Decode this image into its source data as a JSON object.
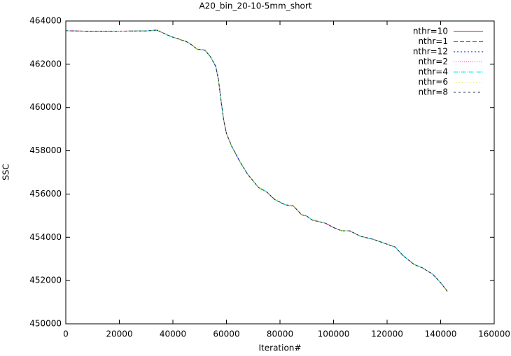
{
  "chart_data": {
    "type": "line",
    "title": "A20_bin_20-10-5mm_short",
    "x_label": "Iteration#",
    "y_label": "SSC",
    "xlim": [
      0,
      160000
    ],
    "xticks": [
      0,
      20000,
      40000,
      60000,
      80000,
      100000,
      120000,
      140000,
      160000
    ],
    "ylim": [
      450000,
      464000
    ],
    "yticks": [
      450000,
      452000,
      454000,
      456000,
      458000,
      460000,
      462000,
      464000
    ],
    "legend": "top-right",
    "x": [
      0,
      10000,
      20000,
      30000,
      34000,
      38000,
      40000,
      45000,
      47000,
      49000,
      52000,
      54000,
      56000,
      57000,
      58000,
      59000,
      60000,
      62000,
      65000,
      68000,
      72000,
      75000,
      78000,
      82000,
      85000,
      88000,
      90000,
      92000,
      97000,
      100000,
      103000,
      106000,
      110000,
      115000,
      120000,
      123000,
      126000,
      130000,
      133000,
      137000,
      140000,
      142500
    ],
    "series": [
      {
        "name": "nthr=10",
        "color": "#ff0000",
        "values": [
          463550,
          463520,
          463530,
          463540,
          463580,
          463350,
          463250,
          463050,
          462900,
          462700,
          462650,
          462350,
          461900,
          461300,
          460300,
          459400,
          458800,
          458200,
          457500,
          456900,
          456300,
          456100,
          455750,
          455500,
          455450,
          455050,
          454980,
          454800,
          454650,
          454450,
          454300,
          454300,
          454050,
          453900,
          453680,
          453550,
          453150,
          452750,
          452600,
          452300,
          451900,
          451500
        ]
      },
      {
        "name": "nthr=1",
        "color": "#00c000",
        "values": [
          463550,
          463520,
          463530,
          463540,
          463580,
          463350,
          463250,
          463050,
          462900,
          462700,
          462650,
          462350,
          461900,
          461300,
          460300,
          459400,
          458800,
          458200,
          457500,
          456900,
          456300,
          456100,
          455750,
          455500,
          455450,
          455050,
          454980,
          454800,
          454650,
          454450,
          454300,
          454300,
          454050,
          453900,
          453680,
          453550,
          453150,
          452750,
          452600,
          452300,
          451900,
          451500
        ]
      },
      {
        "name": "nthr=12",
        "color": "#0000ff",
        "values": [
          463550,
          463520,
          463530,
          463540,
          463580,
          463350,
          463250,
          463050,
          462900,
          462700,
          462650,
          462350,
          461900,
          461300,
          460300,
          459400,
          458800,
          458200,
          457500,
          456900,
          456300,
          456100,
          455750,
          455500,
          455450,
          455050,
          454980,
          454800,
          454650,
          454450,
          454300,
          454300,
          454050,
          453900,
          453680,
          453550,
          453150,
          452750,
          452600,
          452300,
          451900,
          451500
        ]
      },
      {
        "name": "nthr=2",
        "color": "#ff00ff",
        "values": [
          463550,
          463520,
          463530,
          463540,
          463580,
          463350,
          463250,
          463050,
          462900,
          462700,
          462650,
          462350,
          461900,
          461300,
          460300,
          459400,
          458800,
          458200,
          457500,
          456900,
          456300,
          456100,
          455750,
          455500,
          455450,
          455050,
          454980,
          454800,
          454650,
          454450,
          454300,
          454300,
          454050,
          453900,
          453680,
          453550,
          453150,
          452750,
          452600,
          452300,
          451900,
          451500
        ]
      },
      {
        "name": "nthr=4",
        "color": "#00e0e0",
        "values": [
          463550,
          463520,
          463530,
          463540,
          463580,
          463350,
          463250,
          463050,
          462900,
          462700,
          462650,
          462350,
          461900,
          461300,
          460300,
          459400,
          458800,
          458200,
          457500,
          456900,
          456300,
          456100,
          455750,
          455500,
          455450,
          455050,
          454980,
          454800,
          454650,
          454450,
          454300,
          454300,
          454050,
          453900,
          453680,
          453550,
          453150,
          452750,
          452600,
          452300,
          451900,
          451500
        ]
      },
      {
        "name": "nthr=6",
        "color": "#e0e000",
        "values": [
          463550,
          463520,
          463530,
          463540,
          463580,
          463350,
          463250,
          463050,
          462900,
          462700,
          462650,
          462350,
          461900,
          461300,
          460300,
          459400,
          458800,
          458200,
          457500,
          456900,
          456300,
          456100,
          455750,
          455500,
          455450,
          455050,
          454980,
          454800,
          454650,
          454450,
          454300,
          454300,
          454050,
          453900,
          453680,
          453550,
          453150,
          452750,
          452600,
          452300,
          451900,
          451500
        ]
      },
      {
        "name": "nthr=8",
        "color": "#203040",
        "values": [
          463550,
          463520,
          463530,
          463540,
          463580,
          463350,
          463250,
          463050,
          462900,
          462700,
          462650,
          462350,
          461900,
          461300,
          460300,
          459400,
          458800,
          458200,
          457500,
          456900,
          456300,
          456100,
          455750,
          455500,
          455450,
          455050,
          454980,
          454800,
          454650,
          454450,
          454300,
          454300,
          454050,
          453900,
          453680,
          453550,
          453150,
          452750,
          452600,
          452300,
          451900,
          451500
        ]
      }
    ]
  }
}
